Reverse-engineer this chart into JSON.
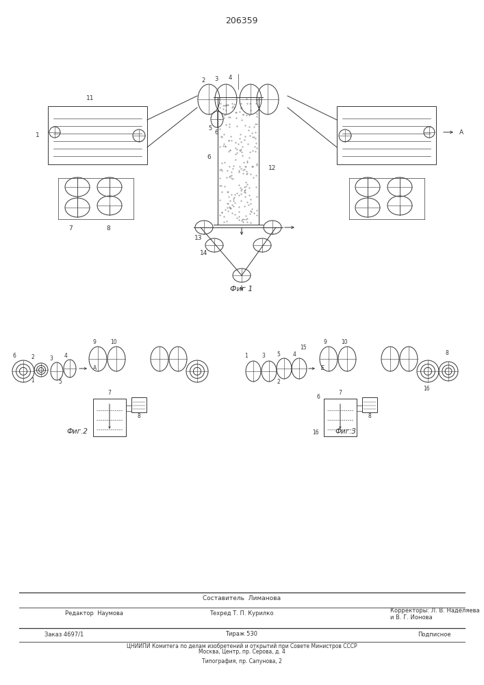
{
  "title": "206359",
  "bg_color": "#ffffff",
  "lc": "#333333",
  "fig1_caption": "Фиг 1",
  "fig2_caption": "Фиг.2",
  "fig3_caption": "Фиг.3",
  "footer_sestavitel": "Составитель  Лиманова",
  "footer_redaktor": "Редактор  Наумова",
  "footer_tehred": "Техред Т. П. Курилко",
  "footer_korr1": "Корректоры: Л. В. Наделяева",
  "footer_korr2": "и В. Г. Ионова",
  "footer_zakaz": "Заказ 4697/1",
  "footer_tirazh": "Тираж 530",
  "footer_podp": "Подписное",
  "footer_cniip1": "ЦНИИПИ Комитега по делам изобретений и открытий при Совете Министров СССР",
  "footer_cniip2": "Москва, Центр, пр. Серова, д. 4",
  "footer_tipo": "Типография, пр. Сапунова, 2"
}
